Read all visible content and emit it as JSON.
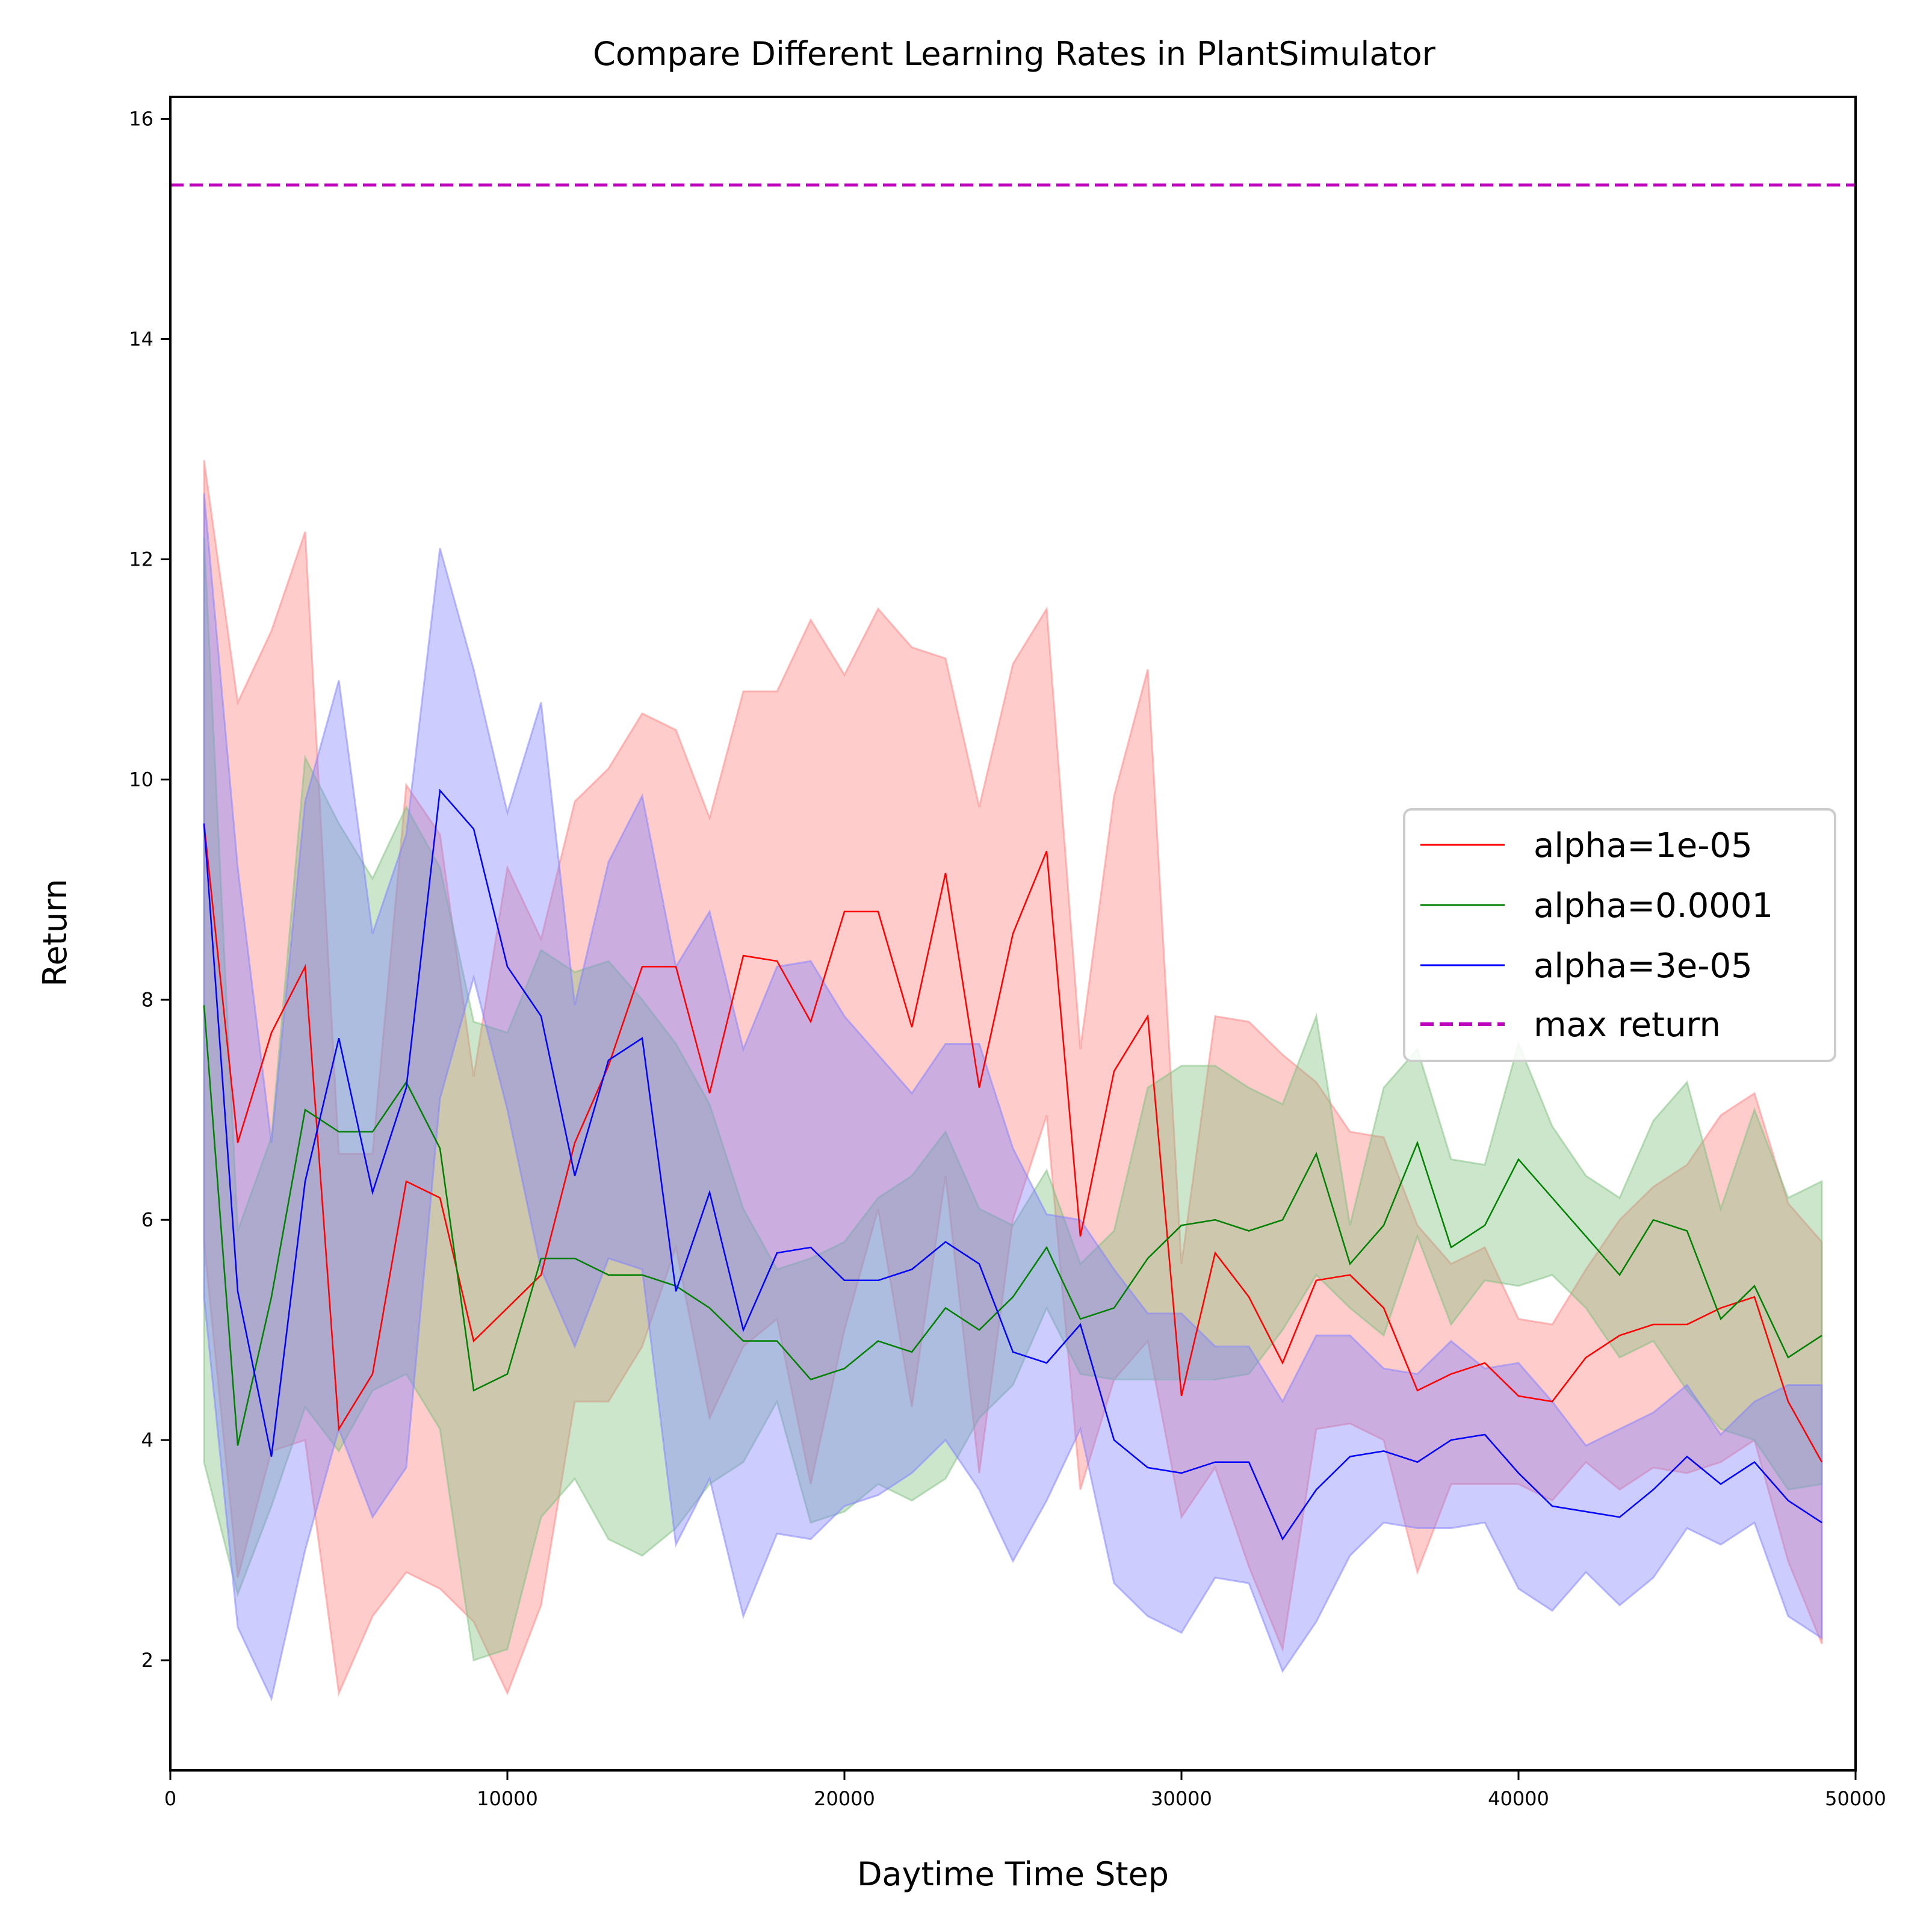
{
  "chart_data": {
    "type": "line",
    "title": "Compare Different Learning Rates in PlantSimulator",
    "xlabel": "Daytime Time Step",
    "ylabel": "Return",
    "xlim": [
      0,
      50000
    ],
    "ylim": [
      1,
      16.2
    ],
    "x_ticks": [
      0,
      10000,
      20000,
      30000,
      40000,
      50000
    ],
    "y_ticks": [
      2,
      4,
      6,
      8,
      10,
      12,
      14,
      16
    ],
    "grid": false,
    "legend_position": "center-right",
    "x": [
      1000,
      2000,
      3000,
      4000,
      5000,
      6000,
      7000,
      8000,
      9000,
      10000,
      11000,
      12000,
      13000,
      14000,
      15000,
      16000,
      17000,
      18000,
      19000,
      20000,
      21000,
      22000,
      23000,
      24000,
      25000,
      26000,
      27000,
      28000,
      29000,
      30000,
      31000,
      32000,
      33000,
      34000,
      35000,
      36000,
      37000,
      38000,
      39000,
      40000,
      41000,
      42000,
      43000,
      44000,
      45000,
      46000,
      47000,
      48000,
      49000
    ],
    "series": [
      {
        "name": "alpha=1e-05",
        "color": "#ff0000",
        "band_color": "#ff8080",
        "mean": [
          9.6,
          6.7,
          7.7,
          8.3,
          4.1,
          4.6,
          6.35,
          6.2,
          4.9,
          5.2,
          5.5,
          6.7,
          7.4,
          8.3,
          8.3,
          7.15,
          8.4,
          8.35,
          7.8,
          8.8,
          8.8,
          7.75,
          9.15,
          7.2,
          8.6,
          9.35,
          5.85,
          7.35,
          7.85,
          4.4,
          5.7,
          5.3,
          4.7,
          5.45,
          5.5,
          5.2,
          4.45,
          4.6,
          4.7,
          4.4,
          4.35,
          4.75,
          4.95,
          5.05,
          5.05,
          5.2,
          5.3,
          4.35,
          3.8
        ],
        "upper": [
          12.9,
          10.7,
          11.35,
          12.25,
          6.6,
          6.6,
          9.95,
          9.5,
          7.3,
          9.2,
          8.55,
          9.8,
          10.1,
          10.6,
          10.45,
          9.65,
          10.8,
          10.8,
          11.45,
          10.95,
          11.55,
          11.2,
          11.1,
          9.75,
          11.05,
          11.55,
          7.55,
          9.85,
          11.0,
          5.6,
          7.85,
          7.8,
          7.5,
          7.25,
          6.8,
          6.75,
          5.95,
          5.6,
          5.75,
          5.1,
          5.05,
          5.55,
          6.0,
          6.3,
          6.5,
          6.95,
          7.15,
          6.15,
          5.8
        ],
        "lower": [
          5.8,
          2.75,
          3.9,
          4.0,
          1.7,
          2.4,
          2.8,
          2.65,
          2.35,
          1.7,
          2.5,
          4.35,
          4.35,
          4.85,
          5.75,
          4.2,
          4.85,
          5.1,
          3.6,
          5.0,
          6.1,
          4.3,
          6.4,
          3.7,
          6.0,
          6.95,
          3.55,
          4.55,
          4.9,
          3.3,
          3.75,
          2.85,
          2.1,
          4.1,
          4.15,
          4.0,
          2.8,
          3.6,
          3.6,
          3.6,
          3.45,
          3.8,
          3.55,
          3.75,
          3.7,
          3.8,
          4.0,
          2.9,
          2.15
        ]
      },
      {
        "name": "alpha=0.0001",
        "color": "#008000",
        "band_color": "#80c080",
        "mean": [
          7.95,
          3.95,
          5.3,
          7.0,
          6.8,
          6.8,
          7.25,
          6.65,
          4.45,
          4.6,
          5.65,
          5.65,
          5.5,
          5.5,
          5.4,
          5.2,
          4.9,
          4.9,
          4.55,
          4.65,
          4.9,
          4.8,
          5.2,
          5.0,
          5.3,
          5.75,
          5.1,
          5.2,
          5.65,
          5.95,
          6.0,
          5.9,
          6.0,
          6.6,
          5.6,
          5.95,
          6.7,
          5.75,
          5.95,
          6.55,
          6.2,
          5.85,
          5.5,
          6.0,
          5.9,
          5.1,
          5.4,
          4.75,
          4.95
        ],
        "upper": [
          12.2,
          5.9,
          6.75,
          10.2,
          9.6,
          9.1,
          9.75,
          9.2,
          7.8,
          7.7,
          8.45,
          8.25,
          8.35,
          8.0,
          7.6,
          7.05,
          6.1,
          5.55,
          5.65,
          5.8,
          6.2,
          6.4,
          6.8,
          6.1,
          5.95,
          6.45,
          5.6,
          5.9,
          7.2,
          7.4,
          7.4,
          7.2,
          7.05,
          7.85,
          5.95,
          7.2,
          7.55,
          6.55,
          6.5,
          7.6,
          6.85,
          6.4,
          6.2,
          6.9,
          7.25,
          6.1,
          7.0,
          6.2,
          6.35
        ],
        "lower": [
          3.8,
          2.6,
          3.4,
          4.3,
          3.9,
          4.45,
          4.6,
          4.1,
          2.0,
          2.1,
          3.3,
          3.65,
          3.1,
          2.95,
          3.2,
          3.6,
          3.8,
          4.35,
          3.25,
          3.35,
          3.6,
          3.45,
          3.65,
          4.2,
          4.5,
          5.2,
          4.6,
          4.55,
          4.55,
          4.55,
          4.55,
          4.6,
          5.0,
          5.5,
          5.2,
          4.95,
          5.85,
          5.05,
          5.45,
          5.4,
          5.5,
          5.2,
          4.75,
          4.9,
          4.45,
          4.1,
          4.0,
          3.55,
          3.6
        ]
      },
      {
        "name": "alpha=3e-05",
        "color": "#0000ff",
        "band_color": "#8080ff",
        "mean": [
          9.6,
          5.35,
          3.85,
          6.35,
          7.65,
          6.25,
          7.2,
          9.9,
          9.55,
          8.3,
          7.85,
          6.4,
          7.45,
          7.65,
          5.35,
          6.25,
          5.0,
          5.7,
          5.75,
          5.45,
          5.45,
          5.55,
          5.8,
          5.6,
          4.8,
          4.7,
          5.05,
          4.0,
          3.75,
          3.7,
          3.8,
          3.8,
          3.1,
          3.55,
          3.85,
          3.9,
          3.8,
          4.0,
          4.05,
          3.7,
          3.4,
          3.35,
          3.3,
          3.55,
          3.85,
          3.6,
          3.8,
          3.45,
          3.25
        ],
        "upper": [
          12.6,
          9.2,
          6.7,
          9.8,
          10.9,
          8.6,
          9.5,
          12.1,
          11.0,
          9.7,
          10.7,
          7.95,
          9.25,
          9.85,
          8.3,
          8.8,
          7.55,
          8.3,
          8.35,
          7.85,
          7.5,
          7.15,
          7.6,
          7.6,
          6.65,
          6.05,
          6.0,
          5.55,
          5.15,
          5.15,
          4.85,
          4.85,
          4.35,
          4.95,
          4.95,
          4.65,
          4.6,
          4.9,
          4.65,
          4.7,
          4.35,
          3.95,
          4.1,
          4.25,
          4.5,
          4.05,
          4.35,
          4.5,
          4.5
        ],
        "lower": [
          5.3,
          2.3,
          1.65,
          3.0,
          4.1,
          3.3,
          3.75,
          7.1,
          8.2,
          7.0,
          5.55,
          4.85,
          5.65,
          5.55,
          3.05,
          3.65,
          2.4,
          3.15,
          3.1,
          3.4,
          3.5,
          3.7,
          4.0,
          3.55,
          2.9,
          3.45,
          4.1,
          2.7,
          2.4,
          2.25,
          2.75,
          2.7,
          1.9,
          2.35,
          2.95,
          3.25,
          3.2,
          3.2,
          3.25,
          2.65,
          2.45,
          2.8,
          2.5,
          2.75,
          3.2,
          3.05,
          3.25,
          2.4,
          2.2
        ]
      }
    ],
    "reference_line": {
      "name": "max return",
      "value": 15.4,
      "color": "#bf00bf",
      "style": "dashed"
    }
  }
}
